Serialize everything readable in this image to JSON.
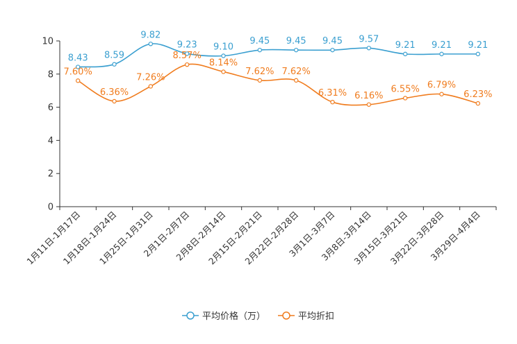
{
  "chart_data": {
    "type": "line",
    "categories": [
      "1月11日-1月17日",
      "1月18日-1月24日",
      "1月25日-1月31日",
      "2月1日-2月7日",
      "2月8日-2月14日",
      "2月15日-2月21日",
      "2月22日-2月28日",
      "3月1日-3月7日",
      "3月8日-3月14日",
      "3月15日-3月21日",
      "3月22日-3月28日",
      "3月29日-4月4日"
    ],
    "ylim": [
      0,
      10
    ],
    "yticks": [
      0,
      2,
      4,
      6,
      8,
      10
    ],
    "legend_position": "bottom",
    "series": [
      {
        "name": "平均价格（万）",
        "color": "#3a9fd0",
        "values": [
          8.43,
          8.59,
          9.82,
          9.23,
          9.1,
          9.45,
          9.45,
          9.45,
          9.57,
          9.21,
          9.21,
          9.21
        ],
        "labels": [
          "8.43",
          "8.59",
          "9.82",
          "9.23",
          "9.10",
          "9.45",
          "9.45",
          "9.45",
          "9.57",
          "9.21",
          "9.21",
          "9.21"
        ]
      },
      {
        "name": "平均折扣",
        "color": "#f07c1e",
        "values": [
          7.6,
          6.36,
          7.26,
          8.57,
          8.14,
          7.62,
          7.62,
          6.31,
          6.16,
          6.55,
          6.79,
          6.23
        ],
        "labels": [
          "7.60%",
          "6.36%",
          "7.26%",
          "8.57%",
          "8.14%",
          "7.62%",
          "7.62%",
          "6.31%",
          "6.16%",
          "6.55%",
          "6.79%",
          "6.23%"
        ]
      }
    ]
  }
}
